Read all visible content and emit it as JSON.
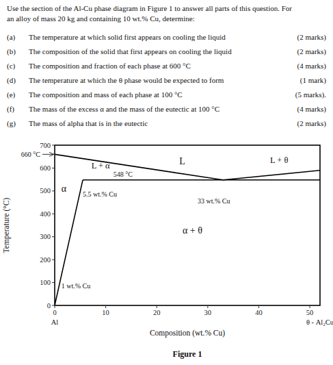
{
  "chart_data": {
    "type": "line",
    "title_lines": [
      "Use the section of the Al-Cu phase diagram in Figure 1 to answer all parts of this question.  For",
      "an alloy of mass 20 kg and containing 10 wt.% Cu, determine:"
    ],
    "questions": [
      [
        "(a)",
        "The temperature at which solid first appears on cooling the liquid",
        "(2 marks)"
      ],
      [
        "(b)",
        "The composition of the solid that first appears on cooling the liquid",
        "(2 marks)"
      ],
      [
        "(c)",
        "The composition and fraction of each phase at 600 °C",
        "(4 marks)"
      ],
      [
        "(d)",
        "The temperature at which the θ phase would be expected to form",
        "(1 mark)"
      ],
      [
        "(e)",
        "The composition and mass of each phase at 100 °C",
        "(5 marks)."
      ],
      [
        "(f)",
        "The mass of the excess α and the mass of the eutectic at 100 °C",
        "(4 marks)"
      ],
      [
        "(g)",
        "The mass of alpha that is in the eutectic",
        "(2 marks)"
      ]
    ],
    "x_label": "Composition (wt.% Cu)",
    "y_label": "Temperature (°C)",
    "caption": "Figure 1",
    "xlim": [
      0,
      52
    ],
    "ylim": [
      0,
      700
    ],
    "xticks": [
      0,
      10,
      20,
      30,
      40,
      50
    ],
    "yticks": [
      0,
      100,
      200,
      300,
      400,
      500,
      600,
      700
    ],
    "grid": false,
    "series": [
      {
        "x": [
          5.5,
          52
        ],
        "values": [
          548,
          548
        ],
        "color": "#000000"
      },
      {
        "x": [
          0,
          33
        ],
        "values": [
          660,
          548
        ],
        "color": "#000000"
      },
      {
        "x": [
          33,
          52
        ],
        "values": [
          548,
          590
        ],
        "color": "#000000"
      },
      {
        "x": [
          0,
          1,
          5.5
        ],
        "values": [
          0,
          100,
          548
        ],
        "color": "#000000"
      }
    ],
    "annotations": [
      {
        "text": "660 °C",
        "x": -4.0,
        "y": 660
      },
      {
        "text": "L",
        "x": 25,
        "y": 630
      },
      {
        "text": "L + θ",
        "x": 44,
        "y": 635
      },
      {
        "text": "L + α",
        "x": 9,
        "y": 610
      },
      {
        "text": "α",
        "x": 1.8,
        "y": 510
      },
      {
        "text": "α + θ",
        "x": 27,
        "y": 330
      },
      {
        "text": "548 °C",
        "x": 11.5,
        "y": 555
      },
      {
        "text": "5.5 wt.% Cu",
        "x": 5.5,
        "y": 500
      },
      {
        "text": "33 wt.% Cu",
        "x": 28,
        "y": 470
      },
      {
        "text": "1 wt.% Cu",
        "x": 1.3,
        "y": 98
      },
      {
        "text": "Al",
        "x": 0,
        "y": -58
      },
      {
        "text": "θ - Al₂Cu",
        "x": 52,
        "y": -58
      }
    ]
  }
}
